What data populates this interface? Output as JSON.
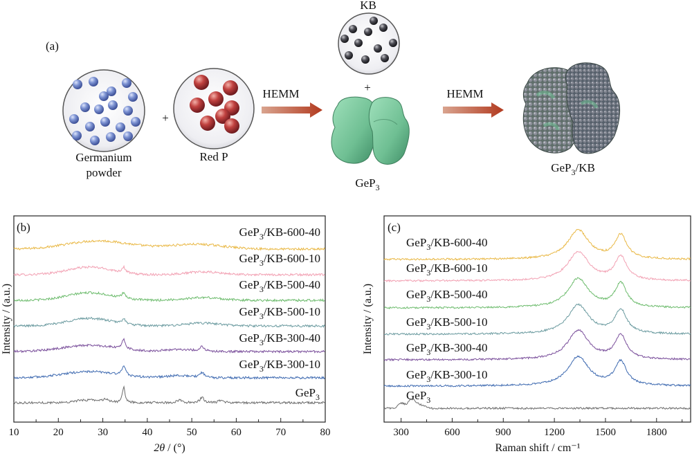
{
  "scheme": {
    "panel_label": "(a)",
    "germanium_line1": "Germanium",
    "germanium_line2": "powder",
    "plus": "+",
    "red_p": "Red P",
    "hemm_1": "HEMM",
    "kb": "KB",
    "gep3_base": "GeP",
    "gep3_sub": "3",
    "hemm_2": "HEMM",
    "gep3kb_base": "GeP",
    "gep3kb_sub": "3",
    "gep3kb_suffix": "/KB",
    "colors": {
      "ge_sphere": "#6f86c9",
      "p_sphere": "#b8383d",
      "kb_sphere": "#3a3a40",
      "gep3_particle": "#6fbf93",
      "arrow": "#b7472a"
    }
  },
  "chart_data": [
    {
      "type": "line",
      "panel_label": "(b)",
      "xlabel_italic": "2θ",
      "xlabel_rest": " / (°)",
      "ylabel": "Intensity / (a.u.)",
      "xlim": [
        10,
        80
      ],
      "xticks": [
        "10",
        "20",
        "30",
        "40",
        "50",
        "60",
        "70",
        "80"
      ],
      "stacked": true,
      "series": [
        {
          "name": "GeP₃/KB-600-40",
          "label_base": "GeP",
          "label_sub": "3",
          "label_suffix": "/KB-600-40",
          "color": "#e9b845",
          "profile": "xrd_amorphous"
        },
        {
          "name": "GeP₃/KB-600-10",
          "label_base": "GeP",
          "label_sub": "3",
          "label_suffix": "/KB-600-10",
          "color": "#f2a1b3",
          "profile": "xrd_weak"
        },
        {
          "name": "GeP₃/KB-500-40",
          "label_base": "GeP",
          "label_sub": "3",
          "label_suffix": "/KB-500-40",
          "color": "#6cbb6c",
          "profile": "xrd_weak"
        },
        {
          "name": "GeP₃/KB-500-10",
          "label_base": "GeP",
          "label_sub": "3",
          "label_suffix": "/KB-500-10",
          "color": "#6a9a9f",
          "profile": "xrd_weak"
        },
        {
          "name": "GeP₃/KB-300-40",
          "label_base": "GeP",
          "label_sub": "3",
          "label_suffix": "/KB-300-40",
          "color": "#7a4f9b",
          "profile": "xrd_mid"
        },
        {
          "name": "GeP₃/KB-300-10",
          "label_base": "GeP",
          "label_sub": "3",
          "label_suffix": "/KB-300-10",
          "color": "#3d69b0",
          "profile": "xrd_mid"
        },
        {
          "name": "GeP₃",
          "label_base": "GeP",
          "label_sub": "3",
          "label_suffix": "",
          "color": "#6b6b6b",
          "profile": "xrd_crystal"
        }
      ],
      "peaks_2theta": [
        26.5,
        30.8,
        34.7,
        47.2,
        52.3,
        56.5,
        64.0,
        71.0
      ]
    },
    {
      "type": "line",
      "panel_label": "(c)",
      "xlabel_italic": "",
      "xlabel_rest": "Raman shift / cm⁻¹",
      "ylabel": "Intensity / (a.u.)",
      "xlim": [
        200,
        2000
      ],
      "xticks": [
        "300",
        "600",
        "900",
        "1200",
        "1500",
        "1800"
      ],
      "xtick_values": [
        300,
        600,
        900,
        1200,
        1500,
        1800
      ],
      "stacked": true,
      "series": [
        {
          "name": "GeP₃/KB-600-40",
          "label_base": "GeP",
          "label_sub": "3",
          "label_suffix": "/KB-600-40",
          "color": "#e9b845",
          "profile": "raman_kb"
        },
        {
          "name": "GeP₃/KB-600-10",
          "label_base": "GeP",
          "label_sub": "3",
          "label_suffix": "/KB-600-10",
          "color": "#f2a1b3",
          "profile": "raman_kb"
        },
        {
          "name": "GeP₃/KB-500-40",
          "label_base": "GeP",
          "label_sub": "3",
          "label_suffix": "/KB-500-40",
          "color": "#6cbb6c",
          "profile": "raman_kb"
        },
        {
          "name": "GeP₃/KB-500-10",
          "label_base": "GeP",
          "label_sub": "3",
          "label_suffix": "/KB-500-10",
          "color": "#6a9a9f",
          "profile": "raman_kb"
        },
        {
          "name": "GeP₃/KB-300-40",
          "label_base": "GeP",
          "label_sub": "3",
          "label_suffix": "/KB-300-40",
          "color": "#7a4f9b",
          "profile": "raman_kb"
        },
        {
          "name": "GeP₃/KB-300-10",
          "label_base": "GeP",
          "label_sub": "3",
          "label_suffix": "/KB-300-10",
          "color": "#3d69b0",
          "profile": "raman_kb"
        },
        {
          "name": "GeP₃",
          "label_base": "GeP",
          "label_sub": "3",
          "label_suffix": "",
          "color": "#6b6b6b",
          "profile": "raman_gep3"
        }
      ],
      "bands_cm": {
        "D": 1340,
        "G": 1590,
        "GeP3": 360
      }
    }
  ]
}
